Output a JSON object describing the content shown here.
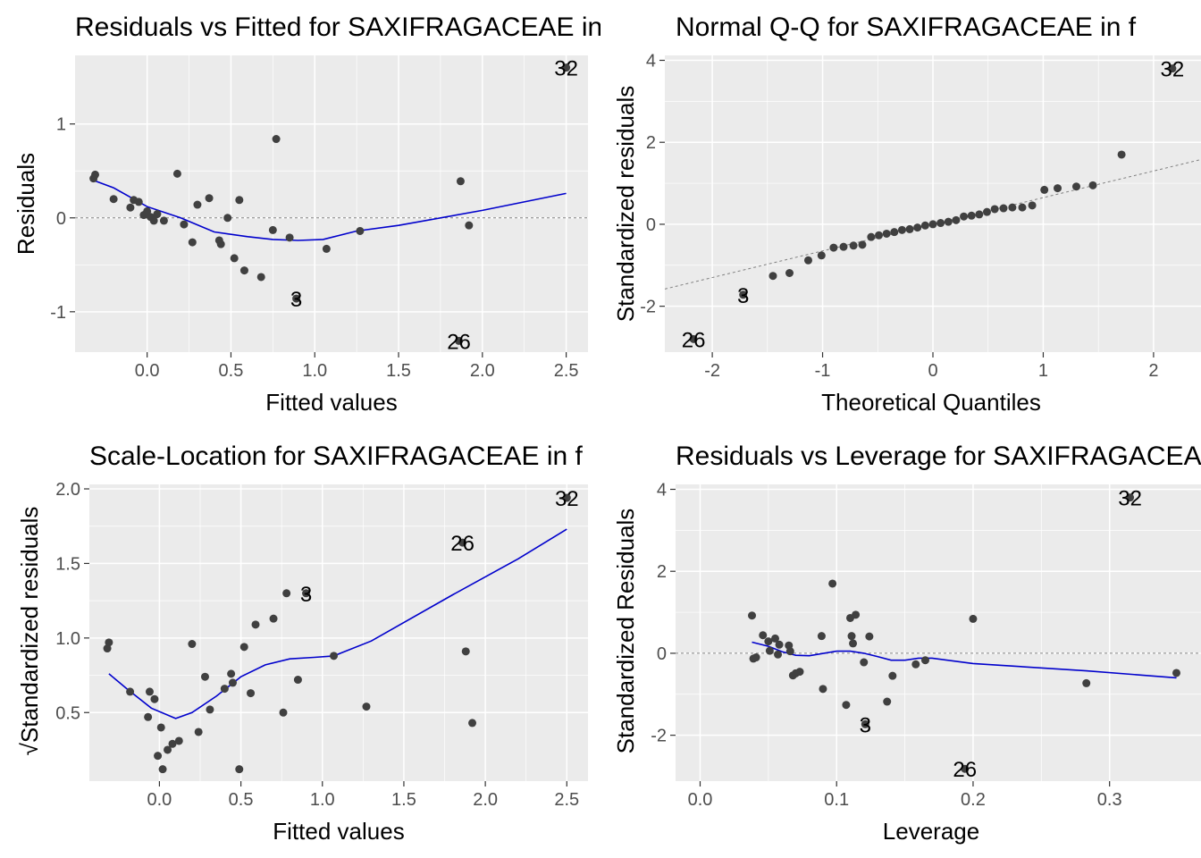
{
  "colors": {
    "panel_bg": "#ebebeb",
    "grid": "#ffffff",
    "points": "#404040",
    "smooth": "#0000cc",
    "refline": "#808080",
    "tick_text": "#4d4d4d"
  },
  "chart_data": [
    {
      "id": "resid-fitted",
      "type": "scatter",
      "title": "Residuals vs Fitted for SAXIFRAGACEAE in f",
      "xlabel": "Fitted values",
      "ylabel": "Residuals",
      "xlim": [
        -0.43,
        2.63
      ],
      "ylim": [
        -1.43,
        1.73
      ],
      "xticks": [
        0.0,
        0.5,
        1.0,
        1.5,
        2.0,
        2.5
      ],
      "xtick_labels": [
        "0.0",
        "0.5",
        "1.0",
        "1.5",
        "2.0",
        "2.5"
      ],
      "yticks": [
        -1,
        0,
        1
      ],
      "ytick_labels": [
        "-1",
        "0",
        "1"
      ],
      "grid": true,
      "hline": 0,
      "points": [
        [
          -0.32,
          0.42
        ],
        [
          -0.31,
          0.46
        ],
        [
          -0.2,
          0.2
        ],
        [
          -0.1,
          0.11
        ],
        [
          -0.08,
          0.19
        ],
        [
          -0.05,
          0.17
        ],
        [
          -0.02,
          0.03
        ],
        [
          0.0,
          0.07
        ],
        [
          0.02,
          0.01
        ],
        [
          0.04,
          -0.03
        ],
        [
          0.06,
          0.04
        ],
        [
          0.1,
          -0.03
        ],
        [
          0.18,
          0.47
        ],
        [
          0.22,
          -0.07
        ],
        [
          0.27,
          -0.26
        ],
        [
          0.3,
          0.14
        ],
        [
          0.37,
          0.21
        ],
        [
          0.43,
          -0.24
        ],
        [
          0.44,
          -0.28
        ],
        [
          0.48,
          0.0
        ],
        [
          0.52,
          -0.43
        ],
        [
          0.55,
          0.19
        ],
        [
          0.58,
          -0.56
        ],
        [
          0.68,
          -0.63
        ],
        [
          0.75,
          -0.13
        ],
        [
          0.77,
          0.84
        ],
        [
          0.85,
          -0.21
        ],
        [
          1.07,
          -0.33
        ],
        [
          1.27,
          -0.14
        ],
        [
          1.87,
          0.39
        ],
        [
          1.92,
          -0.08
        ]
      ],
      "smooth": [
        [
          -0.32,
          0.4
        ],
        [
          -0.2,
          0.32
        ],
        [
          0.0,
          0.12
        ],
        [
          0.2,
          0.0
        ],
        [
          0.4,
          -0.15
        ],
        [
          0.6,
          -0.2
        ],
        [
          0.75,
          -0.23
        ],
        [
          0.9,
          -0.24
        ],
        [
          1.05,
          -0.23
        ],
        [
          1.25,
          -0.14
        ],
        [
          1.5,
          -0.08
        ],
        [
          2.0,
          0.08
        ],
        [
          2.5,
          0.26
        ]
      ],
      "labeled_points": [
        {
          "label": "32",
          "x": 2.5,
          "y": 1.6
        },
        {
          "label": "3",
          "x": 0.89,
          "y": -0.86
        },
        {
          "label": "26",
          "x": 1.86,
          "y": -1.31
        }
      ]
    },
    {
      "id": "normal-qq",
      "type": "scatter",
      "title": "Normal Q-Q for SAXIFRAGACEAE in f",
      "xlabel": "Theoretical Quantiles",
      "ylabel": "Standardized residuals",
      "xlim": [
        -2.43,
        2.43
      ],
      "ylim": [
        -3.12,
        4.12
      ],
      "xticks": [
        -2,
        -1,
        0,
        1,
        2
      ],
      "xtick_labels": [
        "-2",
        "-1",
        "0",
        "1",
        "2"
      ],
      "yticks": [
        -2,
        0,
        2,
        4
      ],
      "ytick_labels": [
        "-2",
        "0",
        "2",
        "4"
      ],
      "grid": true,
      "refline": {
        "intercept": 0.0,
        "slope": 0.65
      },
      "points": [
        [
          -1.45,
          -1.26
        ],
        [
          -1.3,
          -1.19
        ],
        [
          -1.13,
          -0.88
        ],
        [
          -1.01,
          -0.76
        ],
        [
          -0.9,
          -0.57
        ],
        [
          -0.81,
          -0.55
        ],
        [
          -0.72,
          -0.52
        ],
        [
          -0.64,
          -0.5
        ],
        [
          -0.56,
          -0.31
        ],
        [
          -0.49,
          -0.27
        ],
        [
          -0.42,
          -0.23
        ],
        [
          -0.35,
          -0.19
        ],
        [
          -0.28,
          -0.14
        ],
        [
          -0.21,
          -0.12
        ],
        [
          -0.14,
          -0.08
        ],
        [
          -0.07,
          -0.03
        ],
        [
          0.0,
          0.0
        ],
        [
          0.07,
          0.03
        ],
        [
          0.14,
          0.06
        ],
        [
          0.21,
          0.1
        ],
        [
          0.28,
          0.19
        ],
        [
          0.35,
          0.21
        ],
        [
          0.42,
          0.24
        ],
        [
          0.49,
          0.3
        ],
        [
          0.56,
          0.37
        ],
        [
          0.64,
          0.39
        ],
        [
          0.72,
          0.41
        ],
        [
          0.81,
          0.41
        ],
        [
          0.9,
          0.46
        ],
        [
          1.01,
          0.84
        ],
        [
          1.13,
          0.88
        ],
        [
          1.3,
          0.92
        ],
        [
          1.45,
          0.95
        ],
        [
          1.71,
          1.7
        ]
      ],
      "labeled_points": [
        {
          "label": "32",
          "x": 2.17,
          "y": 3.8
        },
        {
          "label": "3",
          "x": -1.72,
          "y": -1.72
        },
        {
          "label": "26",
          "x": -2.17,
          "y": -2.8
        }
      ]
    },
    {
      "id": "scale-location",
      "type": "scatter",
      "title": "Scale-Location for SAXIFRAGACEAE in f",
      "xlabel": "Fitted values",
      "ylabel": "√Standardized residuals",
      "xlim": [
        -0.43,
        2.63
      ],
      "ylim": [
        0.04,
        2.03
      ],
      "xticks": [
        0.0,
        0.5,
        1.0,
        1.5,
        2.0,
        2.5
      ],
      "xtick_labels": [
        "0.0",
        "0.5",
        "1.0",
        "1.5",
        "2.0",
        "2.5"
      ],
      "yticks": [
        0.5,
        1.0,
        1.5,
        2.0
      ],
      "ytick_labels": [
        "0.5",
        "1.0",
        "1.5",
        "2.0"
      ],
      "grid": true,
      "points": [
        [
          -0.32,
          0.93
        ],
        [
          -0.31,
          0.97
        ],
        [
          -0.18,
          0.64
        ],
        [
          -0.07,
          0.47
        ],
        [
          -0.06,
          0.64
        ],
        [
          -0.03,
          0.59
        ],
        [
          -0.01,
          0.21
        ],
        [
          0.01,
          0.4
        ],
        [
          0.02,
          0.12
        ],
        [
          0.05,
          0.25
        ],
        [
          0.08,
          0.29
        ],
        [
          0.12,
          0.31
        ],
        [
          0.2,
          0.96
        ],
        [
          0.24,
          0.37
        ],
        [
          0.28,
          0.74
        ],
        [
          0.31,
          0.52
        ],
        [
          0.4,
          0.66
        ],
        [
          0.44,
          0.76
        ],
        [
          0.45,
          0.7
        ],
        [
          0.49,
          0.12
        ],
        [
          0.52,
          0.94
        ],
        [
          0.56,
          0.63
        ],
        [
          0.59,
          1.09
        ],
        [
          0.7,
          1.13
        ],
        [
          0.76,
          0.5
        ],
        [
          0.78,
          1.3
        ],
        [
          0.85,
          0.72
        ],
        [
          1.07,
          0.88
        ],
        [
          1.27,
          0.54
        ],
        [
          1.88,
          0.91
        ],
        [
          1.92,
          0.43
        ]
      ],
      "smooth": [
        [
          -0.31,
          0.76
        ],
        [
          -0.2,
          0.66
        ],
        [
          -0.05,
          0.53
        ],
        [
          0.1,
          0.46
        ],
        [
          0.2,
          0.5
        ],
        [
          0.35,
          0.61
        ],
        [
          0.5,
          0.74
        ],
        [
          0.65,
          0.82
        ],
        [
          0.8,
          0.86
        ],
        [
          0.95,
          0.87
        ],
        [
          1.07,
          0.88
        ],
        [
          1.3,
          0.98
        ],
        [
          1.8,
          1.29
        ],
        [
          2.2,
          1.53
        ],
        [
          2.5,
          1.73
        ]
      ],
      "labeled_points": [
        {
          "label": "32",
          "x": 2.5,
          "y": 1.94
        },
        {
          "label": "26",
          "x": 1.86,
          "y": 1.64
        },
        {
          "label": "3",
          "x": 0.9,
          "y": 1.3
        }
      ]
    },
    {
      "id": "resid-leverage",
      "type": "scatter",
      "title": "Residuals vs Leverage for SAXIFRAGACEAE in f",
      "xlabel": "Leverage",
      "ylabel": "Standardized Residuals",
      "xlim": [
        -0.018,
        0.367
      ],
      "ylim": [
        -3.12,
        4.12
      ],
      "xticks": [
        0.0,
        0.1,
        0.2,
        0.3
      ],
      "xtick_labels": [
        "0.0",
        "0.1",
        "0.2",
        "0.3"
      ],
      "yticks": [
        -2,
        0,
        2,
        4
      ],
      "ytick_labels": [
        "-2",
        "0",
        "2",
        "4"
      ],
      "grid": true,
      "hline": 0,
      "points": [
        [
          0.038,
          0.92
        ],
        [
          0.039,
          -0.13
        ],
        [
          0.041,
          -0.1
        ],
        [
          0.046,
          0.44
        ],
        [
          0.05,
          0.29
        ],
        [
          0.051,
          0.06
        ],
        [
          0.055,
          0.36
        ],
        [
          0.057,
          -0.03
        ],
        [
          0.058,
          0.21
        ],
        [
          0.065,
          0.19
        ],
        [
          0.066,
          0.05
        ],
        [
          0.068,
          -0.54
        ],
        [
          0.07,
          -0.49
        ],
        [
          0.073,
          -0.45
        ],
        [
          0.089,
          0.42
        ],
        [
          0.09,
          -0.87
        ],
        [
          0.097,
          1.7
        ],
        [
          0.107,
          -1.26
        ],
        [
          0.11,
          0.86
        ],
        [
          0.111,
          0.42
        ],
        [
          0.112,
          0.24
        ],
        [
          0.114,
          0.94
        ],
        [
          0.12,
          -0.22
        ],
        [
          0.124,
          0.41
        ],
        [
          0.137,
          -1.18
        ],
        [
          0.141,
          -0.55
        ],
        [
          0.158,
          -0.27
        ],
        [
          0.165,
          -0.17
        ],
        [
          0.2,
          0.84
        ],
        [
          0.283,
          -0.73
        ],
        [
          0.349,
          -0.48
        ]
      ],
      "smooth": [
        [
          0.038,
          0.27
        ],
        [
          0.05,
          0.17
        ],
        [
          0.06,
          0.04
        ],
        [
          0.07,
          -0.05
        ],
        [
          0.08,
          -0.06
        ],
        [
          0.1,
          0.05
        ],
        [
          0.11,
          0.05
        ],
        [
          0.12,
          0.0
        ],
        [
          0.13,
          -0.08
        ],
        [
          0.14,
          -0.17
        ],
        [
          0.15,
          -0.17
        ],
        [
          0.16,
          -0.12
        ],
        [
          0.17,
          -0.12
        ],
        [
          0.2,
          -0.25
        ],
        [
          0.283,
          -0.43
        ],
        [
          0.349,
          -0.6
        ]
      ],
      "labeled_points": [
        {
          "label": "32",
          "x": 0.315,
          "y": 3.8
        },
        {
          "label": "3",
          "x": 0.121,
          "y": -1.73
        },
        {
          "label": "26",
          "x": 0.194,
          "y": -2.82
        }
      ]
    }
  ]
}
